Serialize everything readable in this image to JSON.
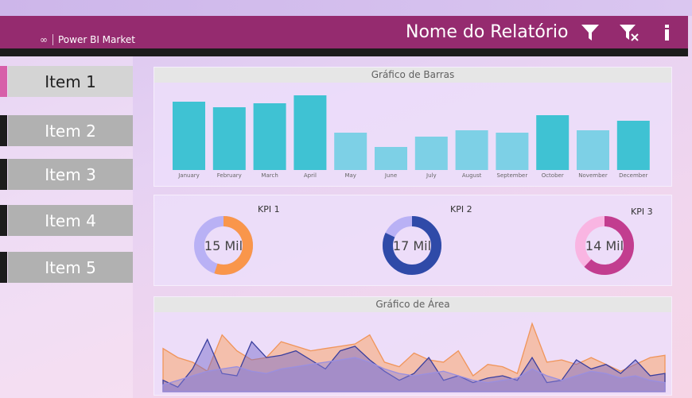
{
  "header": {
    "brand": "Power BI Market",
    "report_title": "Nome do Relatório"
  },
  "nav": {
    "items": [
      {
        "label": "Item 1",
        "active": true
      },
      {
        "label": "Item 2",
        "active": false
      },
      {
        "label": "Item 3",
        "active": false
      },
      {
        "label": "Item 4",
        "active": false
      },
      {
        "label": "Item 5",
        "active": false
      }
    ]
  },
  "colors": {
    "header": "#952b6f",
    "accent": "#d75fa9",
    "bar_dark": "#3fc2d3",
    "bar_light": "#7dd0e6",
    "kpi1_main": "#f9964b",
    "kpi1_rest": "#b9b1f5",
    "kpi2_main": "#2f4aa8",
    "kpi2_rest": "#b9b1f5",
    "kpi3_main": "#c23d8f",
    "kpi3_rest": "#f9b5e2"
  },
  "bar_panel": {
    "title": "Gráfico de Barras"
  },
  "area_panel": {
    "title": "Gráfico de Área"
  },
  "kpis": [
    {
      "label": "KPI 1",
      "value": "15 Mil",
      "share": 0.55
    },
    {
      "label": "KPI 2",
      "value": "17 Mil",
      "share": 0.82
    },
    {
      "label": "KPI 3",
      "value": "14 Mil",
      "share": 0.62
    }
  ],
  "chart_data": [
    {
      "type": "bar",
      "title": "Gráfico de Barras",
      "categories": [
        "January",
        "February",
        "March",
        "April",
        "May",
        "June",
        "July",
        "August",
        "September",
        "October",
        "November",
        "December"
      ],
      "values": [
        86,
        79,
        84,
        94,
        47,
        29,
        42,
        50,
        47,
        69,
        50,
        62
      ],
      "ylim": [
        0,
        100
      ]
    },
    {
      "type": "area",
      "title": "Gráfico de Área",
      "x": [
        1,
        2,
        3,
        4,
        5,
        6,
        7,
        8,
        9,
        10,
        11,
        12,
        13,
        14,
        15,
        16,
        17,
        18,
        19,
        20,
        21,
        22,
        23,
        24,
        25,
        26,
        27,
        28,
        29,
        30,
        31,
        32,
        33,
        34,
        35
      ],
      "series": [
        {
          "values": [
            38,
            30,
            26,
            18,
            50,
            36,
            28,
            30,
            44,
            40,
            36,
            38,
            40,
            42,
            50,
            26,
            22,
            34,
            28,
            26,
            36,
            14,
            24,
            22,
            16,
            60,
            26,
            28,
            24,
            30,
            24,
            18,
            24,
            30,
            32
          ]
        },
        {
          "values": [
            10,
            4,
            20,
            46,
            16,
            14,
            44,
            30,
            32,
            36,
            28,
            20,
            36,
            40,
            28,
            18,
            10,
            16,
            30,
            10,
            14,
            8,
            12,
            14,
            10,
            30,
            8,
            10,
            28,
            20,
            24,
            16,
            28,
            14,
            16
          ]
        },
        {
          "values": [
            6,
            10,
            14,
            18,
            20,
            22,
            18,
            16,
            20,
            22,
            24,
            26,
            28,
            30,
            26,
            20,
            16,
            14,
            16,
            18,
            14,
            10,
            8,
            10,
            12,
            20,
            14,
            10,
            14,
            18,
            16,
            12,
            14,
            10,
            8
          ]
        }
      ],
      "ylim": [
        0,
        70
      ]
    }
  ]
}
